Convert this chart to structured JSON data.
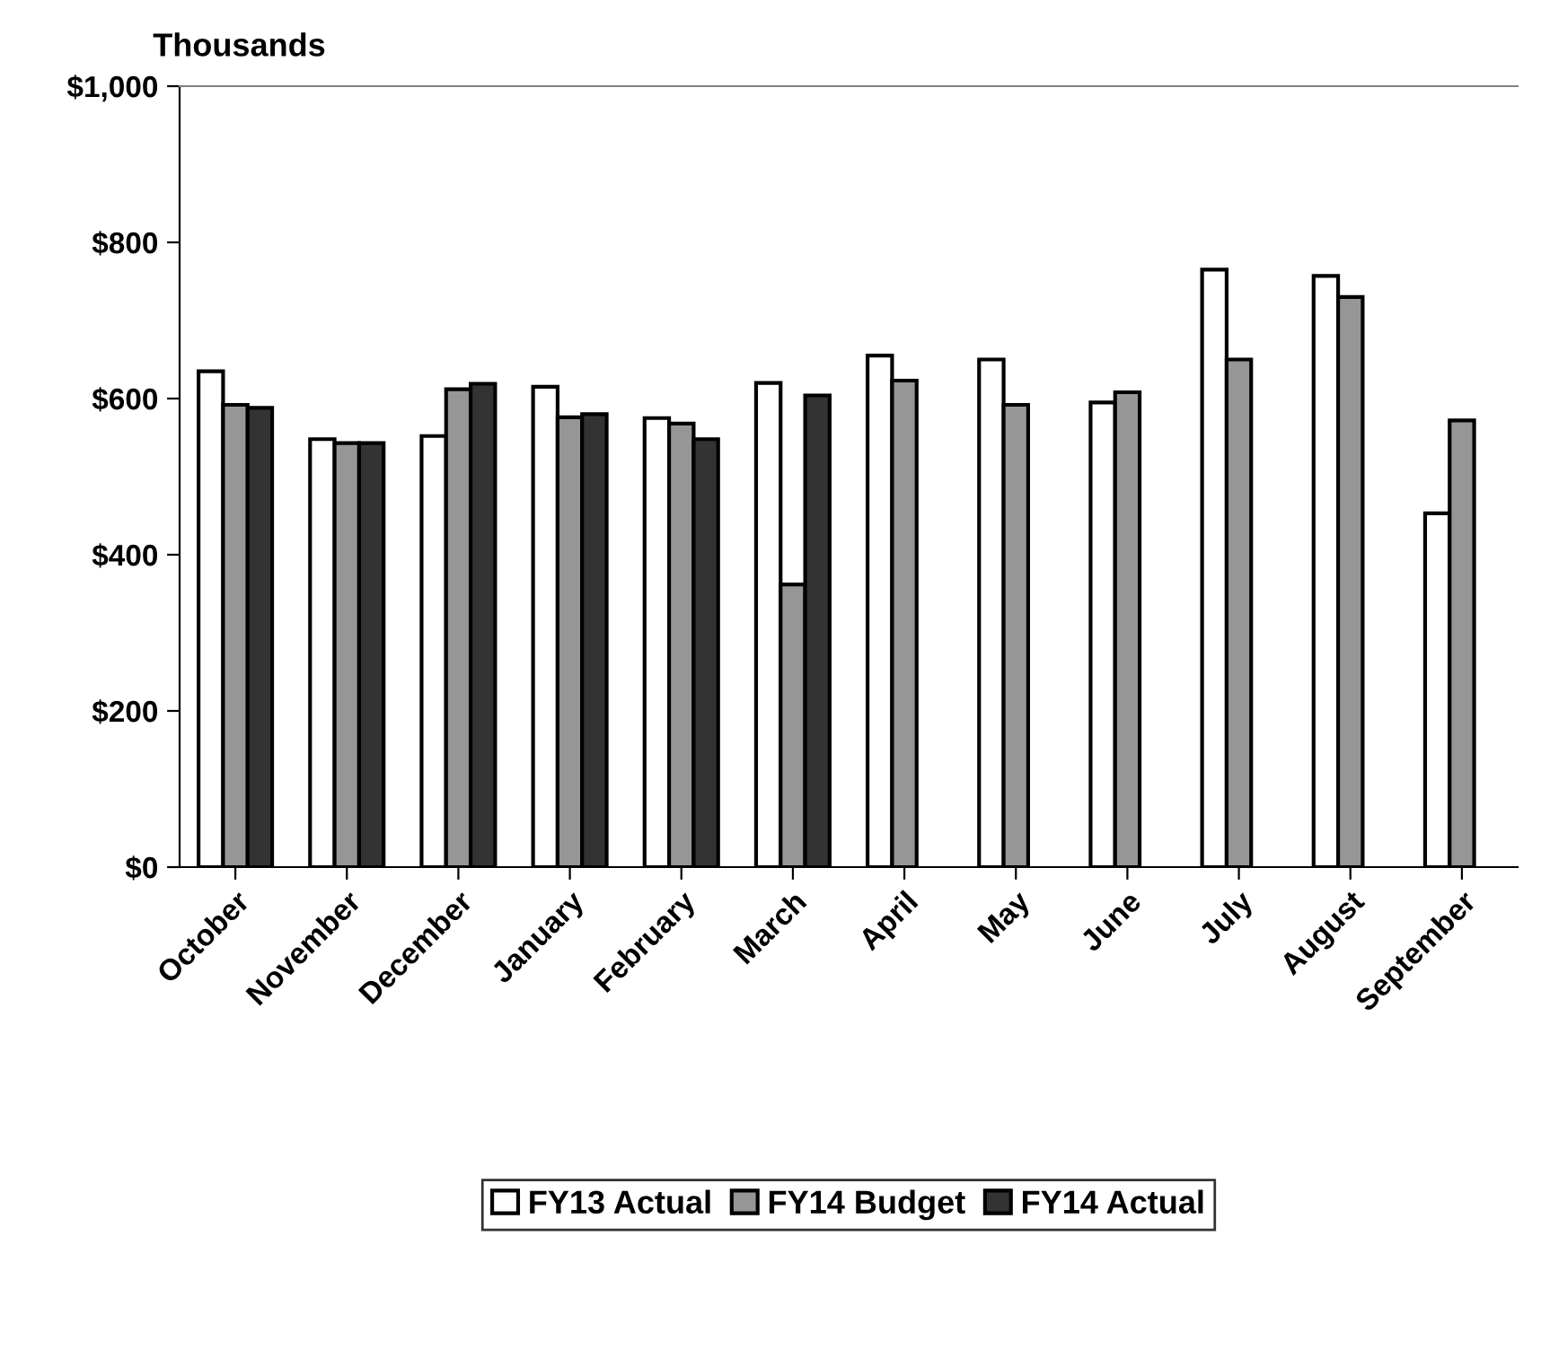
{
  "chart_data": {
    "type": "bar",
    "ylabel": "Thousands",
    "categories": [
      "October",
      "November",
      "December",
      "January",
      "February",
      "March",
      "April",
      "May",
      "June",
      "July",
      "August",
      "September"
    ],
    "series": [
      {
        "name": "FY13 Actual",
        "color": "#ffffff",
        "values": [
          635,
          548,
          552,
          615,
          575,
          620,
          655,
          650,
          595,
          765,
          757,
          453
        ]
      },
      {
        "name": "FY14 Budget",
        "color": "#969696",
        "values": [
          592,
          543,
          612,
          576,
          568,
          362,
          623,
          592,
          608,
          650,
          730,
          572
        ]
      },
      {
        "name": "FY14 Actual",
        "color": "#333333",
        "values": [
          588,
          543,
          619,
          580,
          548,
          604,
          null,
          null,
          null,
          null,
          null,
          null
        ]
      }
    ],
    "ylim": [
      0,
      1000
    ],
    "yticks": [
      {
        "value": 0,
        "label": "$0"
      },
      {
        "value": 200,
        "label": "$200"
      },
      {
        "value": 400,
        "label": "$400"
      },
      {
        "value": 600,
        "label": "$600"
      },
      {
        "value": 800,
        "label": "$800"
      },
      {
        "value": 1000,
        "label": "$1,000"
      }
    ],
    "grid": false,
    "legend": "bottom"
  }
}
